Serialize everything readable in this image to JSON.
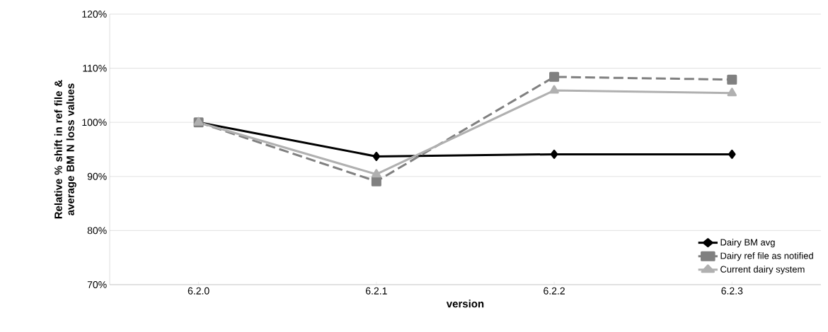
{
  "chart_data": {
    "type": "line",
    "xlabel": "version",
    "ylabel": "Relative % shift in ref file & average BM N loss values",
    "categories": [
      "6.2.0",
      "6.2.1",
      "6.2.2",
      "6.2.3"
    ],
    "series": [
      {
        "name": "Dairy BM avg",
        "color": "#000000",
        "marker": "diamond",
        "line_style": "solid",
        "values": [
          100,
          93.7,
          94.1,
          94.1
        ]
      },
      {
        "name": "Dairy ref file as notified",
        "color": "#808080",
        "marker": "square",
        "line_style": "dashed",
        "values": [
          100,
          89.1,
          108.4,
          107.9
        ]
      },
      {
        "name": "Current dairy system",
        "color": "#b0b0b0",
        "marker": "triangle",
        "line_style": "solid",
        "values": [
          100,
          90.4,
          105.9,
          105.4
        ]
      }
    ],
    "ylim": [
      70,
      120
    ],
    "yticks": [
      {
        "value": 70,
        "label": "70%"
      },
      {
        "value": 80,
        "label": "80%"
      },
      {
        "value": 90,
        "label": "90%"
      },
      {
        "value": 100,
        "label": "100%"
      },
      {
        "value": 110,
        "label": "110%"
      },
      {
        "value": 120,
        "label": "120%"
      }
    ],
    "grid": "y",
    "legend": "bottom right"
  }
}
